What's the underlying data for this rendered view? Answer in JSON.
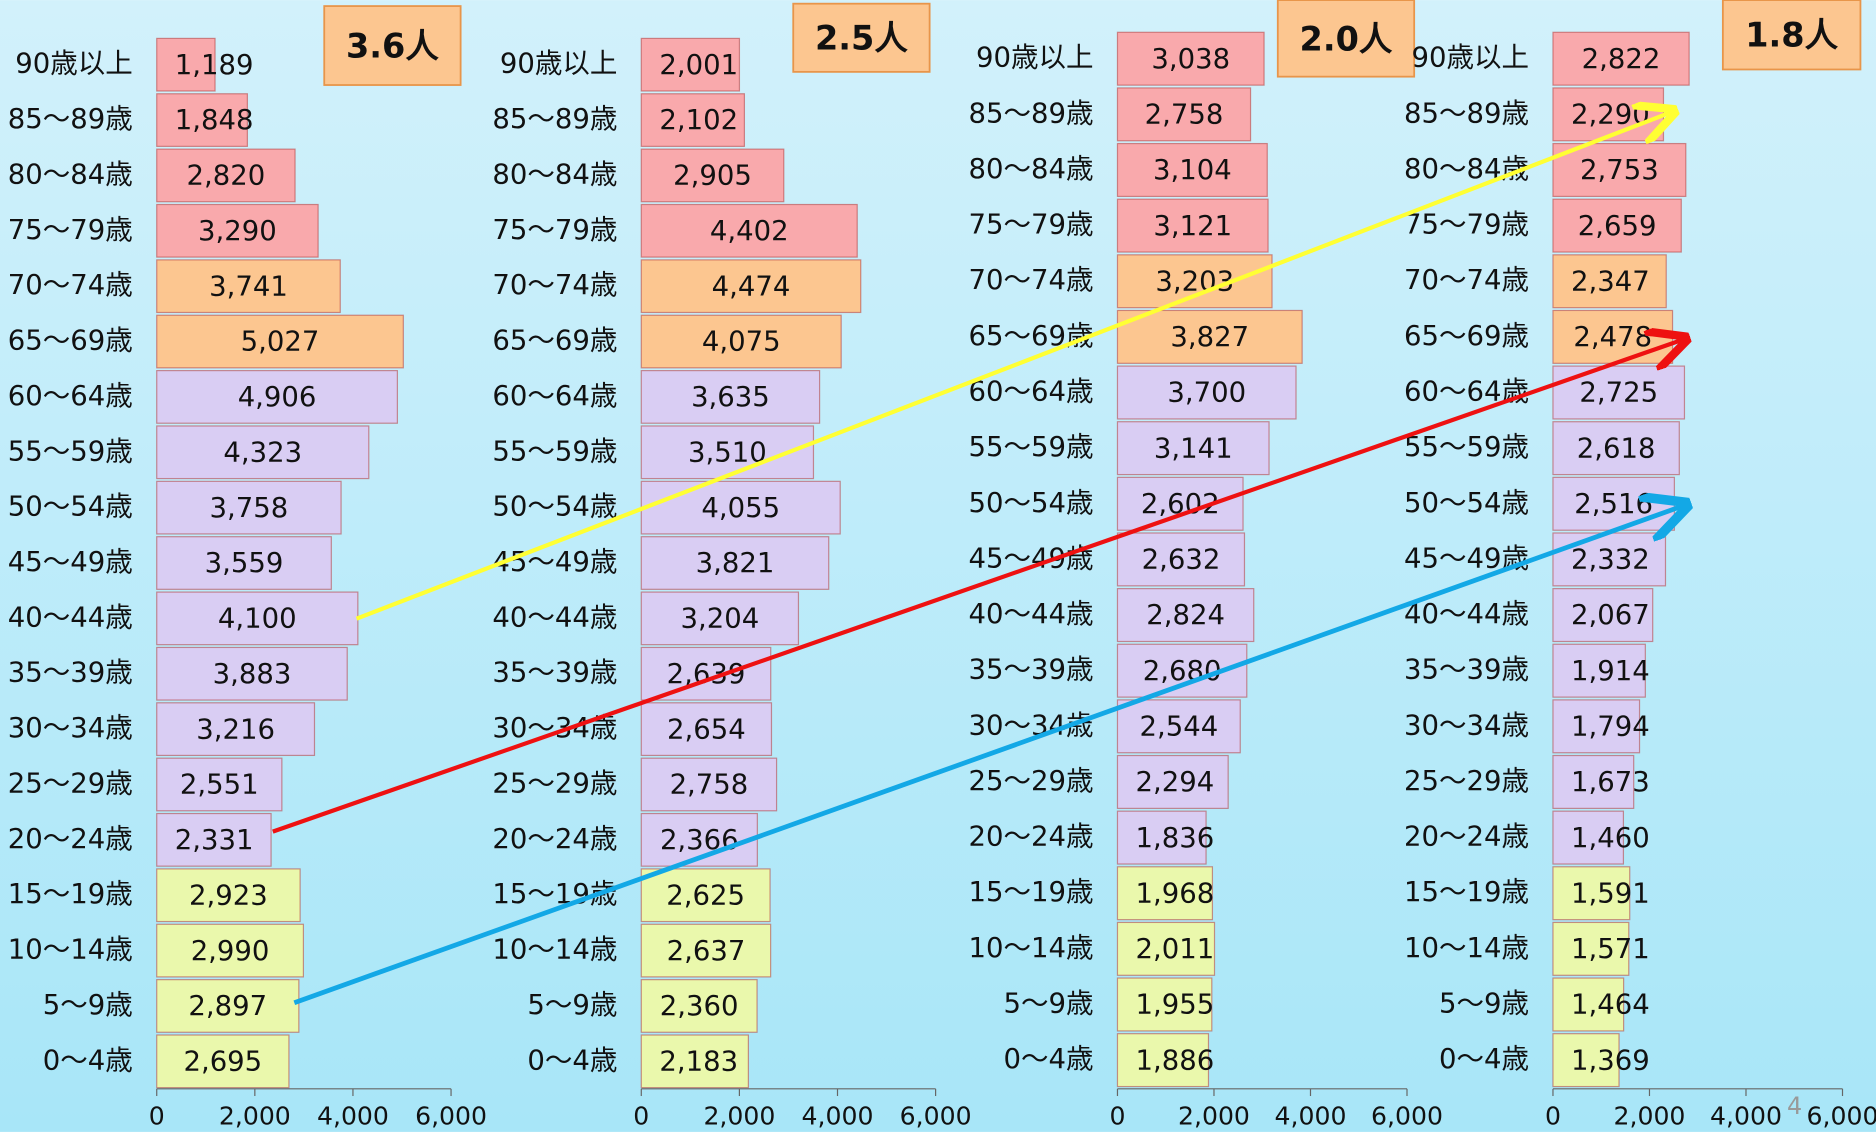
{
  "chart_data": [
    {
      "type": "barh",
      "annotation": "3.6人",
      "categories": [
        "90歳以上",
        "85〜89歳",
        "80〜84歳",
        "75〜79歳",
        "70〜74歳",
        "65〜69歳",
        "60〜64歳",
        "55〜59歳",
        "50〜54歳",
        "45〜49歳",
        "40〜44歳",
        "35〜39歳",
        "30〜34歳",
        "25〜29歳",
        "20〜24歳",
        "15〜19歳",
        "10〜14歳",
        "5〜9歳",
        "0〜4歳"
      ],
      "values": [
        1189,
        1848,
        2820,
        3290,
        3741,
        5027,
        4906,
        4323,
        3758,
        3559,
        4100,
        3883,
        3216,
        2551,
        2331,
        2923,
        2990,
        2897,
        2695
      ],
      "value_labels": [
        "1,189",
        "1,848",
        "2,820",
        "3,290",
        "3,741",
        "5,027",
        "4,906",
        "4,323",
        "3,758",
        "3,559",
        "4,100",
        "3,883",
        "3,216",
        "2,551",
        "2,331",
        "2,923",
        "2,990",
        "2,897",
        "2,695"
      ],
      "colors": [
        "#f9a9ac",
        "#f9a9ac",
        "#f9a9ac",
        "#f9a9ac",
        "#fcc690",
        "#fcc690",
        "#d9cdf3",
        "#d9cdf3",
        "#d9cdf3",
        "#d9cdf3",
        "#d9cdf3",
        "#d9cdf3",
        "#d9cdf3",
        "#d9cdf3",
        "#d9cdf3",
        "#eaf8ac",
        "#eaf8ac",
        "#eaf8ac",
        "#eaf8ac"
      ],
      "xlim": [
        0,
        6000
      ],
      "xticks": [
        0,
        {
          "value": 2000,
          "label": "2,000"
        },
        {
          "value": 4000,
          "label": "4,000"
        },
        {
          "value": 6000,
          "label": "6,000"
        }
      ]
    },
    {
      "type": "barh",
      "annotation": "2.5人",
      "categories": [
        "90歳以上",
        "85〜89歳",
        "80〜84歳",
        "75〜79歳",
        "70〜74歳",
        "65〜69歳",
        "60〜64歳",
        "55〜59歳",
        "50〜54歳",
        "45〜49歳",
        "40〜44歳",
        "35〜39歳",
        "30〜34歳",
        "25〜29歳",
        "20〜24歳",
        "15〜19歳",
        "10〜14歳",
        "5〜9歳",
        "0〜4歳"
      ],
      "values": [
        2001,
        2102,
        2905,
        4402,
        4474,
        4075,
        3635,
        3510,
        4055,
        3821,
        3204,
        2639,
        2654,
        2758,
        2366,
        2625,
        2637,
        2360,
        2183
      ],
      "value_labels": [
        "2,001",
        "2,102",
        "2,905",
        "4,402",
        "4,474",
        "4,075",
        "3,635",
        "3,510",
        "4,055",
        "3,821",
        "3,204",
        "2,639",
        "2,654",
        "2,758",
        "2,366",
        "2,625",
        "2,637",
        "2,360",
        "2,183"
      ],
      "colors": [
        "#f9a9ac",
        "#f9a9ac",
        "#f9a9ac",
        "#f9a9ac",
        "#fcc690",
        "#fcc690",
        "#d9cdf3",
        "#d9cdf3",
        "#d9cdf3",
        "#d9cdf3",
        "#d9cdf3",
        "#d9cdf3",
        "#d9cdf3",
        "#d9cdf3",
        "#d9cdf3",
        "#eaf8ac",
        "#eaf8ac",
        "#eaf8ac",
        "#eaf8ac"
      ],
      "xlim": [
        0,
        6000
      ],
      "xticks": [
        0,
        {
          "value": 2000,
          "label": "2,000"
        },
        {
          "value": 4000,
          "label": "4,000"
        },
        {
          "value": 6000,
          "label": "6,000"
        }
      ]
    },
    {
      "type": "barh",
      "annotation": "2.0人",
      "categories": [
        "90歳以上",
        "85〜89歳",
        "80〜84歳",
        "75〜79歳",
        "70〜74歳",
        "65〜69歳",
        "60〜64歳",
        "55〜59歳",
        "50〜54歳",
        "45〜49歳",
        "40〜44歳",
        "35〜39歳",
        "30〜34歳",
        "25〜29歳",
        "20〜24歳",
        "15〜19歳",
        "10〜14歳",
        "5〜9歳",
        "0〜4歳"
      ],
      "values": [
        3038,
        2758,
        3104,
        3121,
        3203,
        3827,
        3700,
        3141,
        2602,
        2632,
        2824,
        2680,
        2544,
        2294,
        1836,
        1968,
        2011,
        1955,
        1886
      ],
      "value_labels": [
        "3,038",
        "2,758",
        "3,104",
        "3,121",
        "3,203",
        "3,827",
        "3,700",
        "3,141",
        "2,602",
        "2,632",
        "2,824",
        "2,680",
        "2,544",
        "2,294",
        "1,836",
        "1,968",
        "2,011",
        "1,955",
        "1,886"
      ],
      "colors": [
        "#f9a9ac",
        "#f9a9ac",
        "#f9a9ac",
        "#f9a9ac",
        "#fcc690",
        "#fcc690",
        "#d9cdf3",
        "#d9cdf3",
        "#d9cdf3",
        "#d9cdf3",
        "#d9cdf3",
        "#d9cdf3",
        "#d9cdf3",
        "#d9cdf3",
        "#d9cdf3",
        "#eaf8ac",
        "#eaf8ac",
        "#eaf8ac",
        "#eaf8ac"
      ],
      "xlim": [
        0,
        6000
      ],
      "xticks": [
        0,
        {
          "value": 2000,
          "label": "2,000"
        },
        {
          "value": 4000,
          "label": "4,000"
        },
        {
          "value": 6000,
          "label": "6,000"
        }
      ]
    },
    {
      "type": "barh",
      "annotation": "1.8人",
      "categories": [
        "90歳以上",
        "85〜89歳",
        "80〜84歳",
        "75〜79歳",
        "70〜74歳",
        "65〜69歳",
        "60〜64歳",
        "55〜59歳",
        "50〜54歳",
        "45〜49歳",
        "40〜44歳",
        "35〜39歳",
        "30〜34歳",
        "25〜29歳",
        "20〜24歳",
        "15〜19歳",
        "10〜14歳",
        "5〜9歳",
        "0〜4歳"
      ],
      "values": [
        2822,
        2290,
        2753,
        2659,
        2347,
        2478,
        2725,
        2618,
        2516,
        2332,
        2067,
        1914,
        1794,
        1673,
        1460,
        1591,
        1571,
        1464,
        1369
      ],
      "value_labels": [
        "2,822",
        "2,290",
        "2,753",
        "2,659",
        "2,347",
        "2,478",
        "2,725",
        "2,618",
        "2,516",
        "2,332",
        "2,067",
        "1,914",
        "1,794",
        "1,673",
        "1,460",
        "1,591",
        "1,571",
        "1,464",
        "1,369"
      ],
      "colors": [
        "#f9a9ac",
        "#f9a9ac",
        "#f9a9ac",
        "#f9a9ac",
        "#fcc690",
        "#fcc690",
        "#d9cdf3",
        "#d9cdf3",
        "#d9cdf3",
        "#d9cdf3",
        "#d9cdf3",
        "#d9cdf3",
        "#d9cdf3",
        "#d9cdf3",
        "#d9cdf3",
        "#eaf8ac",
        "#eaf8ac",
        "#eaf8ac",
        "#eaf8ac"
      ],
      "xlim": [
        0,
        6000
      ],
      "xticks": [
        0,
        {
          "value": 2000,
          "label": "2,000"
        },
        {
          "value": 4000,
          "label": "4,000"
        },
        {
          "value": 6000,
          "label": "6,000"
        }
      ]
    }
  ],
  "page_number": "4"
}
